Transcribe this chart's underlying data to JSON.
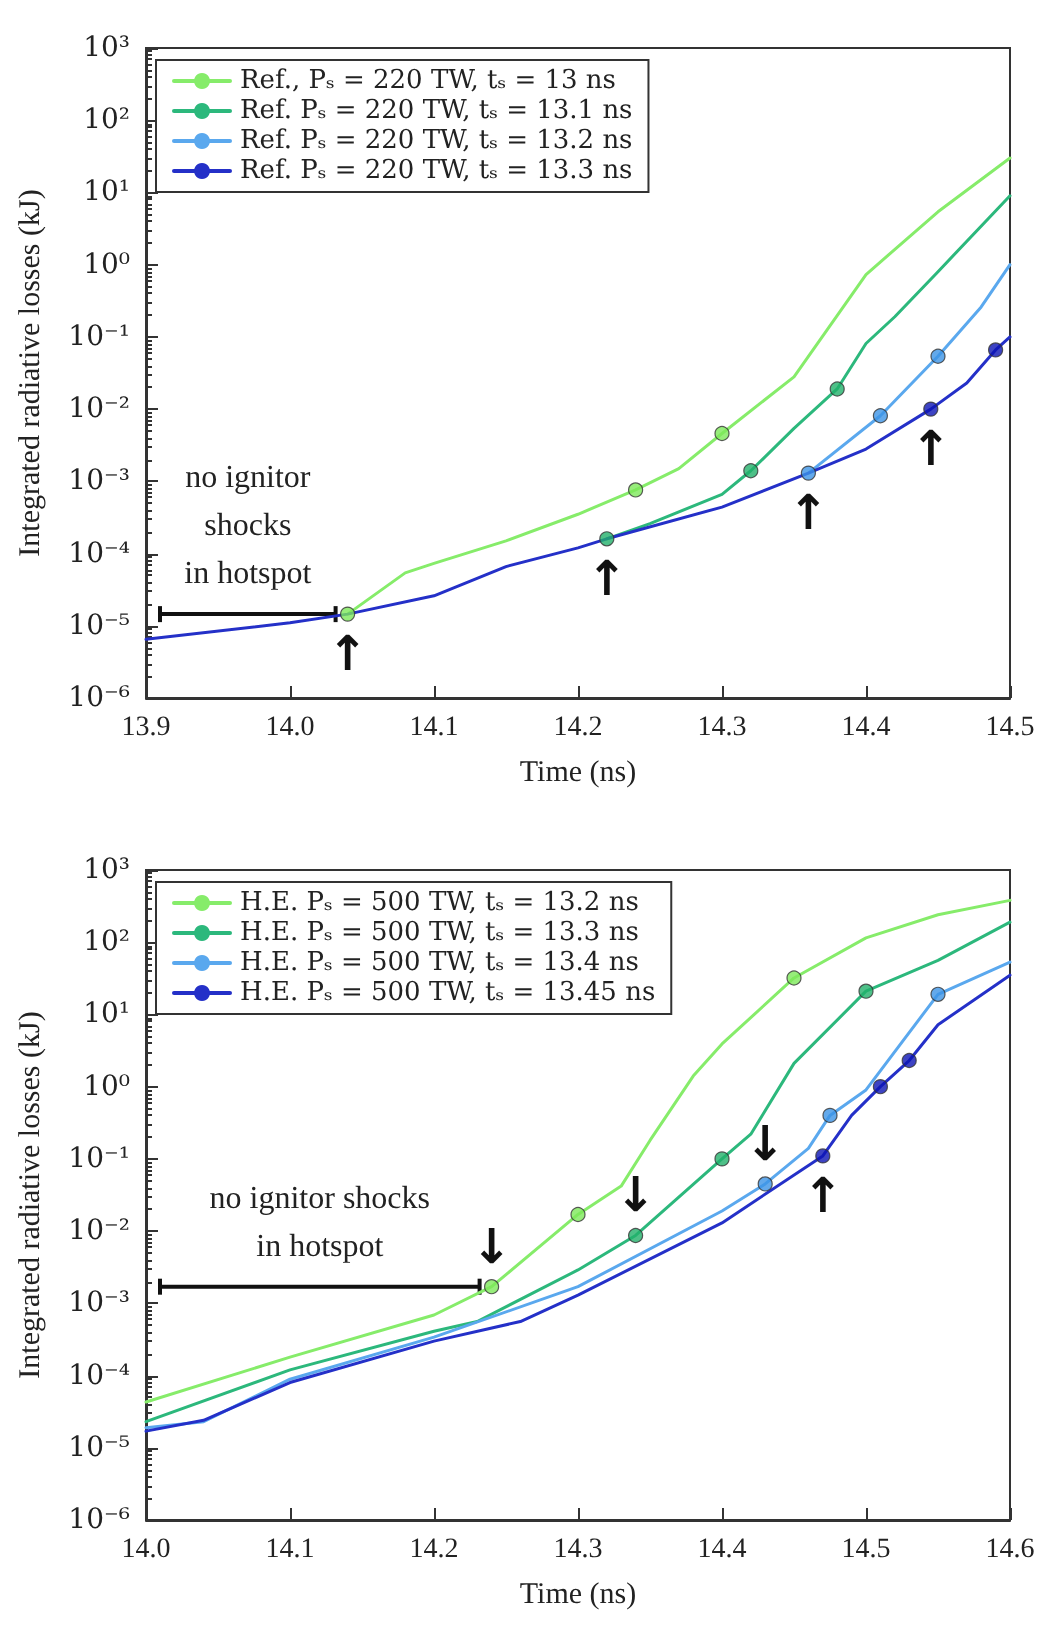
{
  "chart_data": [
    {
      "type": "line",
      "xlabel": "Time (ns)",
      "ylabel": "Integrated radiative losses (kJ)",
      "log": "y",
      "legend": "top left",
      "marker": "none",
      "xlim": [
        13.9,
        14.5
      ],
      "xticks": [
        13.9,
        {
          "value": 14,
          "label": "14.0"
        },
        14.1,
        14.2,
        14.3,
        14.4,
        14.5
      ],
      "ylim": [
        1e-06,
        1000
      ],
      "yticks": [
        {
          "value": 1e-06,
          "label": "10⁻⁶"
        },
        {
          "value": 1e-05,
          "label": "10⁻⁵"
        },
        {
          "value": 0.0001,
          "label": "10⁻⁴"
        },
        {
          "value": 0.001,
          "label": "10⁻³"
        },
        {
          "value": 0.01,
          "label": "10⁻²"
        },
        {
          "value": 0.1,
          "label": "10⁻¹"
        },
        {
          "value": 1,
          "label": "10⁰"
        },
        {
          "value": 10,
          "label": "10¹"
        },
        {
          "value": 100,
          "label": "10²"
        },
        {
          "value": 1000,
          "label": "10³"
        }
      ],
      "series": [
        {
          "name": "Ref., Pₛ = 220 TW, tₛ = 13 ns",
          "color": "#86ec6a",
          "x": [
            14.04,
            14.08,
            14.1,
            14.15,
            14.2,
            14.24,
            14.27,
            14.3,
            14.35,
            14.4,
            14.45,
            14.5
          ],
          "values": [
            1.45e-05,
            5.4e-05,
            7.3e-05,
            0.00015,
            0.00035,
            0.00076,
            0.0015,
            0.0046,
            0.028,
            0.73,
            5.4,
            30
          ]
        },
        {
          "name": "Ref. Pₛ = 220 TW, tₛ = 13.1 ns",
          "color": "#2cb87c",
          "x": [
            14.22,
            14.25,
            14.3,
            14.32,
            14.35,
            14.38,
            14.4,
            14.42,
            14.45,
            14.5
          ],
          "values": [
            0.00016,
            0.00026,
            0.00066,
            0.0014,
            0.0054,
            0.019,
            0.081,
            0.19,
            0.8,
            9
          ]
        },
        {
          "name": "Ref. Pₛ = 220 TW, tₛ = 13.2 ns",
          "color": "#5aa8ee",
          "x": [
            14.36,
            14.41,
            14.45,
            14.48,
            14.5
          ],
          "values": [
            0.0013,
            0.0081,
            0.054,
            0.26,
            1
          ]
        },
        {
          "name": "Ref. Pₛ = 220 TW, tₛ = 13.3 ns",
          "color": "#2430c8",
          "x": [
            13.9,
            14.0,
            14.04,
            14.1,
            14.15,
            14.2,
            14.22,
            14.3,
            14.36,
            14.4,
            14.445,
            14.47,
            14.49,
            14.5
          ],
          "values": [
            6.5e-06,
            1.1e-05,
            1.45e-05,
            2.6e-05,
            6.6e-05,
            0.00012,
            0.00016,
            0.00044,
            0.0013,
            0.0028,
            0.01,
            0.023,
            0.066,
            0.1
          ]
        },
        {
          "type": "scatter",
          "marker": "circle",
          "color": "#7de85a",
          "x": [
            14.04,
            14.24,
            14.3
          ],
          "values": [
            1.45e-05,
            0.00076,
            0.0046
          ]
        },
        {
          "type": "scatter",
          "marker": "circle",
          "color": "#22b06a",
          "x": [
            14.22,
            14.32,
            14.38
          ],
          "values": [
            0.00016,
            0.0014,
            0.019
          ]
        },
        {
          "type": "scatter",
          "marker": "circle",
          "color": "#3c94e6",
          "x": [
            14.36,
            14.41,
            14.45
          ],
          "values": [
            0.0013,
            0.0081,
            0.054
          ]
        },
        {
          "type": "scatter",
          "marker": "circle",
          "color": "#0c14b4",
          "x": [
            14.445,
            14.49
          ],
          "values": [
            0.01,
            0.066
          ]
        }
      ],
      "annotations": [
        "no ignitor\nshocks\nin hotspot",
        {
          "text": "↑",
          "x": 14.04,
          "y": 1.45e-05
        },
        {
          "text": "↑",
          "x": 14.22,
          "y": 0.00016
        },
        {
          "text": "↑",
          "x": 14.36,
          "y": 0.0013
        },
        {
          "text": "↑",
          "x": 14.445,
          "y": 0.01
        }
      ]
    },
    {
      "type": "line",
      "xlabel": "Time (ns)",
      "ylabel": "Integrated radiative losses (kJ)",
      "log": "y",
      "legend": "top left",
      "marker": "none",
      "xlim": [
        14,
        14.6
      ],
      "xticks": [
        {
          "value": 14,
          "label": "14.0"
        },
        14.1,
        14.2,
        14.3,
        14.4,
        14.5,
        14.6
      ],
      "ylim": [
        1e-06,
        1000
      ],
      "yticks": [
        {
          "value": 1e-06,
          "label": "10⁻⁶"
        },
        {
          "value": 1e-05,
          "label": "10⁻⁵"
        },
        {
          "value": 0.0001,
          "label": "10⁻⁴"
        },
        {
          "value": 0.001,
          "label": "10⁻³"
        },
        {
          "value": 0.01,
          "label": "10⁻²"
        },
        {
          "value": 0.1,
          "label": "10⁻¹"
        },
        {
          "value": 1,
          "label": "10⁰"
        },
        {
          "value": 10,
          "label": "10¹"
        },
        {
          "value": 100,
          "label": "10²"
        },
        {
          "value": 1000,
          "label": "10³"
        }
      ],
      "series": [
        {
          "name": "H.E. Pₛ = 500 TW, tₛ = 13.2 ns",
          "color": "#86ec6a",
          "x": [
            14.0,
            14.1,
            14.2,
            14.24,
            14.3,
            14.33,
            14.35,
            14.38,
            14.4,
            14.45,
            14.5,
            14.55,
            14.6
          ],
          "values": [
            4.3e-05,
            0.00018,
            0.00069,
            0.0017,
            0.017,
            0.042,
            0.18,
            1.4,
            3.9,
            32,
            115,
            240,
            380
          ]
        },
        {
          "name": "H.E. Pₛ = 500 TW, tₛ = 13.3 ns",
          "color": "#2cb87c",
          "x": [
            14.0,
            14.1,
            14.2,
            14.23,
            14.3,
            14.34,
            14.4,
            14.42,
            14.45,
            14.5,
            14.55,
            14.6
          ],
          "values": [
            2.3e-05,
            0.00012,
            0.00041,
            0.00056,
            0.0029,
            0.0087,
            0.1,
            0.22,
            2.1,
            21,
            56,
            190
          ]
        },
        {
          "name": "H.E. Pₛ = 500 TW, tₛ = 13.4 ns",
          "color": "#5aa8ee",
          "x": [
            14.0,
            14.04,
            14.1,
            14.2,
            14.3,
            14.4,
            14.43,
            14.46,
            14.475,
            14.5,
            14.55,
            14.6
          ],
          "values": [
            1.9e-05,
            2.3e-05,
            8.9e-05,
            0.00034,
            0.0017,
            0.019,
            0.045,
            0.14,
            0.4,
            0.9,
            19,
            53
          ]
        },
        {
          "name": "H.E. Pₛ = 500 TW, tₛ = 13.45 ns",
          "color": "#2430c8",
          "x": [
            14.0,
            14.04,
            14.1,
            14.2,
            14.26,
            14.3,
            14.4,
            14.47,
            14.49,
            14.51,
            14.53,
            14.55,
            14.6
          ],
          "values": [
            1.7e-05,
            2.4e-05,
            8e-05,
            0.0003,
            0.00056,
            0.0013,
            0.013,
            0.11,
            0.4,
            1,
            2.3,
            7.2,
            35
          ]
        },
        {
          "type": "scatter",
          "marker": "circle",
          "color": "#7de85a",
          "x": [
            14.24,
            14.3,
            14.45
          ],
          "values": [
            0.0017,
            0.017,
            32
          ]
        },
        {
          "type": "scatter",
          "marker": "circle",
          "color": "#22b06a",
          "x": [
            14.34,
            14.4,
            14.5
          ],
          "values": [
            0.0087,
            0.1,
            21
          ]
        },
        {
          "type": "scatter",
          "marker": "circle",
          "color": "#3c94e6",
          "x": [
            14.43,
            14.475,
            14.55
          ],
          "values": [
            0.045,
            0.4,
            19
          ]
        },
        {
          "type": "scatter",
          "marker": "circle",
          "color": "#0c14b4",
          "x": [
            14.47,
            14.51,
            14.53
          ],
          "values": [
            0.11,
            1,
            2.3
          ]
        }
      ],
      "annotations": [
        "no ignitor shocks\nin hotspot",
        {
          "text": "↓",
          "x": 14.24,
          "y": 0.0017
        },
        {
          "text": "↓",
          "x": 14.34,
          "y": 0.0087
        },
        {
          "text": "↓",
          "x": 14.43,
          "y": 0.045
        },
        {
          "text": "↑",
          "x": 14.47,
          "y": 0.11
        }
      ]
    }
  ]
}
